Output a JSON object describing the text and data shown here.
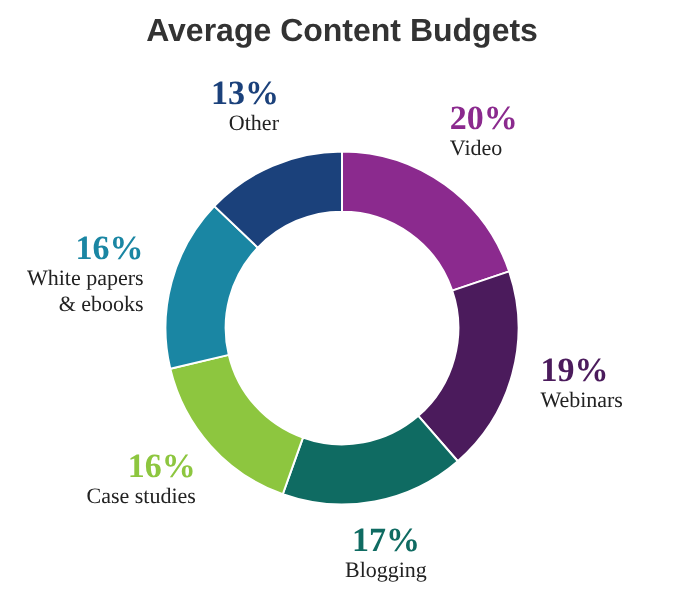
{
  "chart_data": {
    "type": "donut",
    "title": "Average Content Budgets",
    "categories": [
      "Video",
      "Webinars",
      "Blogging",
      "Case studies",
      "White papers & ebooks",
      "Other"
    ],
    "values": [
      20,
      19,
      17,
      16,
      16,
      13
    ],
    "value_labels": [
      "20%",
      "19%",
      "17%",
      "16%",
      "16%",
      "13%"
    ],
    "colors": [
      "#8b2a8e",
      "#4b1b5c",
      "#0f6b62",
      "#8dc63f",
      "#1a86a3",
      "#1b417b"
    ]
  }
}
